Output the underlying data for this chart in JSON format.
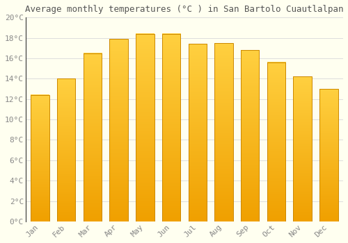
{
  "title": "Average monthly temperatures (°C ) in San Bartolo Cuautlalpan",
  "months": [
    "Jan",
    "Feb",
    "Mar",
    "Apr",
    "May",
    "Jun",
    "Jul",
    "Aug",
    "Sep",
    "Oct",
    "Nov",
    "Dec"
  ],
  "temperatures": [
    12.4,
    14.0,
    16.5,
    17.9,
    18.4,
    18.4,
    17.4,
    17.5,
    16.8,
    15.6,
    14.2,
    13.0
  ],
  "bar_color_top": "#FFD040",
  "bar_color_bottom": "#F0A000",
  "bar_edge_color": "#CC8800",
  "ylim": [
    0,
    20
  ],
  "ytick_step": 2,
  "background_color": "#FFFFF0",
  "grid_color": "#DDDDDD",
  "title_fontsize": 9,
  "tick_fontsize": 8,
  "title_color": "#555555",
  "tick_color": "#888888",
  "ylabel_format": "°C",
  "spine_color": "#333333"
}
